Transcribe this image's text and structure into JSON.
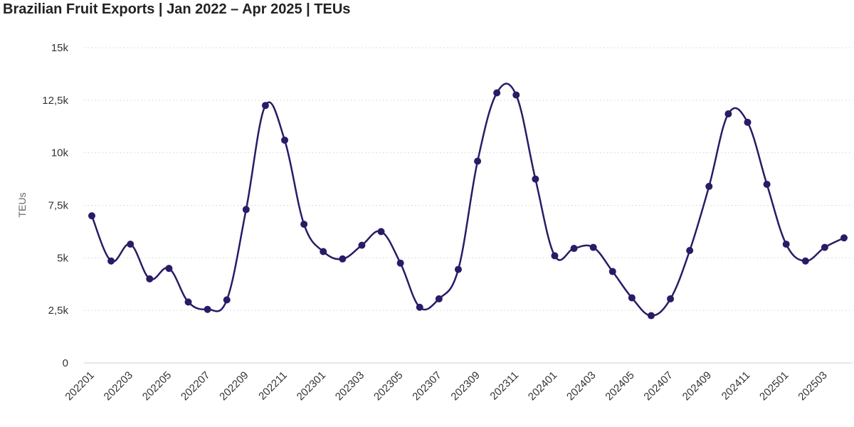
{
  "chart_data": {
    "type": "line",
    "title": "Brazilian Fruit Exports | Jan 2022 – Apr 2025 | TEUs",
    "ylabel": "TEUs",
    "xlabel": "",
    "ylim": [
      0,
      15000
    ],
    "yticks": [
      {
        "value": 0,
        "label": "0"
      },
      {
        "value": 2500,
        "label": "2,5k"
      },
      {
        "value": 5000,
        "label": "5k"
      },
      {
        "value": 7500,
        "label": "7,5k"
      },
      {
        "value": 10000,
        "label": "10k"
      },
      {
        "value": 12500,
        "label": "12,5k"
      },
      {
        "value": 15000,
        "label": "15k"
      }
    ],
    "grid": "horizontal-dashed",
    "legend": "none",
    "color": "#2b1a66",
    "x": [
      "202201",
      "202202",
      "202203",
      "202204",
      "202205",
      "202206",
      "202207",
      "202208",
      "202209",
      "202210",
      "202211",
      "202212",
      "202301",
      "202302",
      "202303",
      "202304",
      "202305",
      "202306",
      "202307",
      "202308",
      "202309",
      "202310",
      "202311",
      "202312",
      "202401",
      "202402",
      "202403",
      "202404",
      "202405",
      "202406",
      "202407",
      "202408",
      "202409",
      "202410",
      "202411",
      "202412",
      "202501",
      "202502",
      "202503",
      "202504"
    ],
    "xticks": [
      "202201",
      "202203",
      "202205",
      "202207",
      "202209",
      "202211",
      "202301",
      "202303",
      "202305",
      "202307",
      "202309",
      "202311",
      "202401",
      "202403",
      "202405",
      "202407",
      "202409",
      "202411",
      "202501",
      "202503"
    ],
    "series": [
      {
        "values": [
          7000,
          4850,
          5650,
          4000,
          4500,
          2900,
          2550,
          3000,
          7300,
          12250,
          10600,
          6600,
          5300,
          4950,
          5600,
          6250,
          4750,
          2650,
          3050,
          4450,
          9600,
          12850,
          12750,
          8750,
          5100,
          5450,
          5500,
          4350,
          3100,
          2250,
          3050,
          5350,
          8400,
          11850,
          11450,
          8500,
          5650,
          4850,
          5500,
          5950
        ]
      }
    ]
  }
}
